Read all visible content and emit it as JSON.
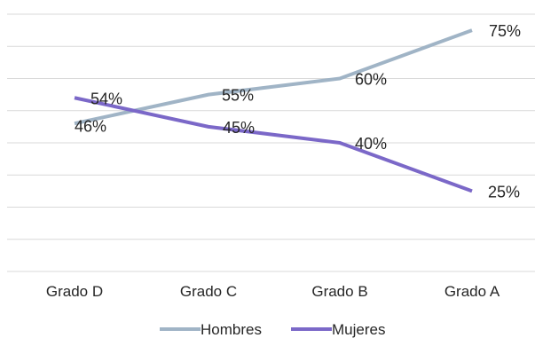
{
  "chart_data": {
    "type": "line",
    "categories": [
      "Grado D",
      "Grado C",
      "Grado B",
      "Grado A"
    ],
    "series": [
      {
        "name": "Hombres",
        "values": [
          46,
          55,
          60,
          75
        ],
        "labels": [
          "46%",
          "55%",
          "60%",
          "75%"
        ],
        "color": "#a0b4c6"
      },
      {
        "name": "Mujeres",
        "values": [
          54,
          45,
          40,
          25
        ],
        "labels": [
          "54%",
          "45%",
          "40%",
          "25%"
        ],
        "color": "#7b68c8"
      }
    ],
    "ylim": [
      0,
      80
    ],
    "grid": true,
    "legend_position": "bottom",
    "title": "",
    "xlabel": "",
    "ylabel": ""
  }
}
